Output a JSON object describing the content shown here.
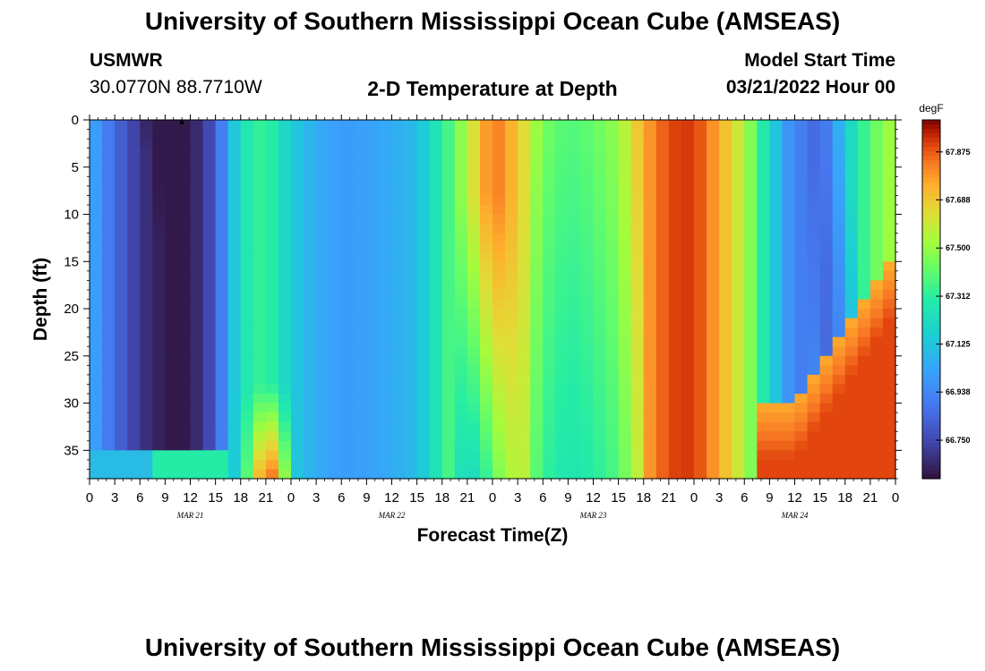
{
  "header": {
    "title": "University of Southern Mississippi Ocean Cube (AMSEAS)",
    "station": "USMWR",
    "coords": "30.0770N  88.7710W",
    "plot_title": "2-D Temperature at Depth",
    "model_start_label": "Model Start Time",
    "model_start_value": "03/21/2022 Hour 00"
  },
  "footer": {
    "title": "University of Southern Mississippi Ocean Cube (AMSEAS)"
  },
  "chart_data": {
    "type": "heatmap",
    "title": "2-D Temperature at Depth",
    "xlabel": "Forecast Time(Z)",
    "ylabel": "Depth (ft)",
    "units": "degF",
    "xlim_hours": [
      0,
      96
    ],
    "ylim_ft": [
      0,
      38
    ],
    "x_tick_labels": [
      "0",
      "3",
      "6",
      "9",
      "12",
      "15",
      "18",
      "21",
      "0",
      "3",
      "6",
      "9",
      "12",
      "15",
      "18",
      "21",
      "0",
      "3",
      "6",
      "9",
      "12",
      "15",
      "18",
      "21",
      "0",
      "3",
      "6",
      "9",
      "12",
      "15",
      "18",
      "21",
      "0"
    ],
    "y_ticks": [
      0,
      5,
      10,
      15,
      20,
      25,
      30,
      35
    ],
    "date_labels": [
      "MAR 21",
      "MAR 22",
      "MAR 23",
      "MAR 24"
    ],
    "colorbar": {
      "min": 66.6,
      "max": 68.0,
      "ticks": [
        67.875,
        67.688,
        67.5,
        67.312,
        67.125,
        66.938,
        66.75
      ]
    },
    "surface_temperature_series": {
      "hours": [
        0,
        3,
        6,
        9,
        12,
        15,
        18,
        21,
        24,
        27,
        30,
        33,
        36,
        39,
        42,
        45,
        48,
        51,
        54,
        57,
        60,
        63,
        66,
        69,
        72,
        75,
        78,
        81,
        84,
        87,
        90,
        93,
        96
      ],
      "values": [
        67.05,
        66.85,
        66.7,
        66.62,
        66.62,
        66.8,
        67.25,
        67.35,
        67.15,
        67.05,
        67.0,
        67.02,
        67.05,
        67.1,
        67.3,
        67.55,
        67.85,
        67.7,
        67.45,
        67.38,
        67.42,
        67.5,
        67.75,
        67.9,
        67.92,
        67.75,
        67.55,
        67.2,
        66.9,
        66.95,
        67.15,
        67.4,
        67.55
      ]
    },
    "notes": "Depth profile: cold column (~66.6 degF) extends from surface to ~35 ft on MAR 21; warm (~67.8 degF) pocket near bottom at hour 21-22 MAR 21; cool water (~66.9 degF) on MAR 24 hours 9-18 down to ~30 ft with warm (~67.8 degF) water below."
  }
}
